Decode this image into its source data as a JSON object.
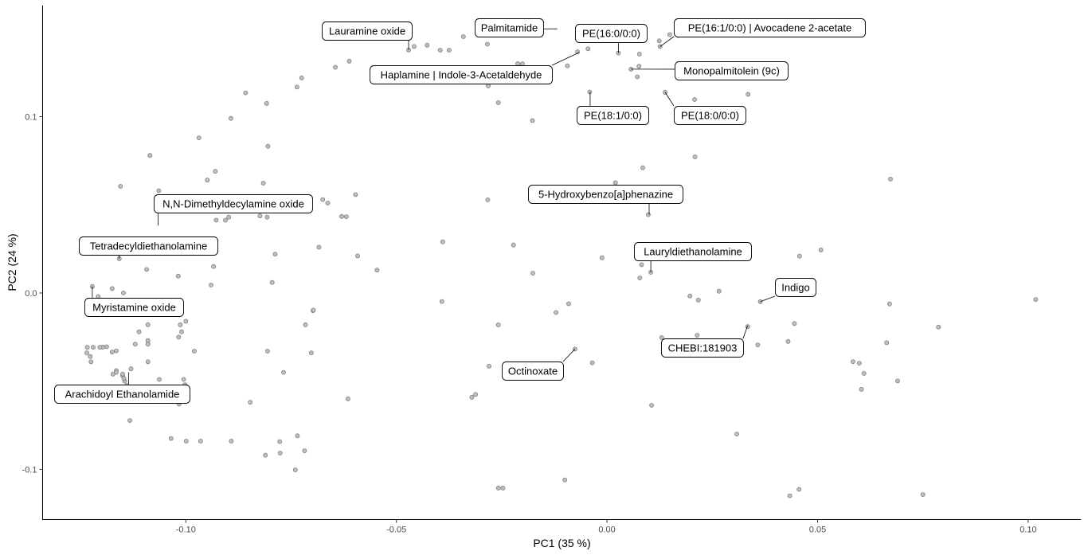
{
  "chart_data": {
    "type": "scatter",
    "xlabel": "PC1 (35 %)",
    "ylabel": "PC2 (24 %)",
    "xlim": [
      -0.134,
      0.1125
    ],
    "ylim": [
      -0.1285,
      0.163
    ],
    "xticks": [
      -0.1,
      -0.05,
      0.0,
      0.05,
      0.1
    ],
    "xtick_labels": [
      "-0.10",
      "-0.05",
      "0.00",
      "0.05",
      "0.10"
    ],
    "yticks": [
      -0.1,
      0.0,
      0.1
    ],
    "ytick_labels": [
      "-0.1",
      "0.0",
      "0.1"
    ],
    "grid": false,
    "legend": "none",
    "colors": {
      "point_fill": "#bdbdbd",
      "point_stroke": "#6e6e6e",
      "axis": "#000000",
      "tick_text": "#4d4d4d"
    },
    "points": [
      [
        -0.0471,
        0.1378
      ],
      [
        -0.0458,
        0.1398
      ],
      [
        -0.0427,
        0.1405
      ],
      [
        -0.0396,
        0.1377
      ],
      [
        -0.0375,
        0.1377
      ],
      [
        -0.0341,
        0.1454
      ],
      [
        -0.0284,
        0.1411
      ],
      [
        -0.0282,
        0.1175
      ],
      [
        -0.0227,
        0.1232
      ],
      [
        -0.0212,
        0.1301
      ],
      [
        -0.0201,
        0.13
      ],
      [
        -0.0178,
        0.1475
      ],
      [
        -0.0094,
        0.1288
      ],
      [
        -0.007,
        0.1368
      ],
      [
        -0.0045,
        0.1385
      ],
      [
        -0.0035,
        0.147
      ],
      [
        -0.0012,
        0.1492
      ],
      [
        0.0027,
        0.1361
      ],
      [
        0.0072,
        0.1226
      ],
      [
        0.0077,
        0.1355
      ],
      [
        0.0124,
        0.143
      ],
      [
        0.0126,
        0.1398
      ],
      [
        0.0149,
        0.1465
      ],
      [
        0.0169,
        0.146
      ],
      [
        0.0208,
        0.1097
      ],
      [
        0.0335,
        0.1127
      ],
      [
        -0.0258,
        0.1079
      ],
      [
        -0.0177,
        0.0978
      ],
      [
        0.0076,
        0.1286
      ],
      [
        0.0057,
        0.1269
      ],
      [
        -0.0041,
        0.114
      ],
      [
        0.0138,
        0.1138
      ],
      [
        0.0085,
        0.071
      ],
      [
        0.0209,
        0.0772
      ],
      [
        0.002,
        0.0625
      ],
      [
        -0.0283,
        0.0528
      ],
      [
        0.0098,
        0.0444
      ],
      [
        0.0673,
        0.0646
      ],
      [
        -0.0222,
        0.0272
      ],
      [
        -0.0176,
        0.0112
      ],
      [
        -0.0012,
        0.02
      ],
      [
        0.0082,
        0.016
      ],
      [
        0.0104,
        0.0117
      ],
      [
        0.0078,
        0.0085
      ],
      [
        0.0457,
        0.0209
      ],
      [
        0.0508,
        0.0244
      ],
      [
        0.0364,
        -0.0049
      ],
      [
        0.0197,
        -0.0017
      ],
      [
        0.0217,
        -0.004
      ],
      [
        0.0266,
        0.001
      ],
      [
        0.1018,
        -0.0037
      ],
      [
        0.0671,
        -0.0062
      ],
      [
        0.0445,
        -0.0173
      ],
      [
        0.0787,
        -0.0193
      ],
      [
        0.0334,
        -0.0191
      ],
      [
        0.0214,
        -0.024
      ],
      [
        0.013,
        -0.0253
      ],
      [
        0.0358,
        -0.0294
      ],
      [
        0.043,
        -0.0275
      ],
      [
        0.0664,
        -0.0282
      ],
      [
        0.0584,
        -0.0389
      ],
      [
        0.0599,
        -0.0398
      ],
      [
        0.061,
        -0.0456
      ],
      [
        0.069,
        -0.0499
      ],
      [
        0.0604,
        -0.0546
      ],
      [
        0.0308,
        -0.08
      ],
      [
        0.0456,
        -0.1114
      ],
      [
        0.0434,
        -0.115
      ],
      [
        0.075,
        -0.1143
      ],
      [
        0.0106,
        -0.0637
      ],
      [
        -0.0091,
        -0.0061
      ],
      [
        -0.0121,
        -0.0111
      ],
      [
        -0.0258,
        -0.0181
      ],
      [
        -0.0076,
        -0.0318
      ],
      [
        -0.0035,
        -0.0396
      ],
      [
        -0.028,
        -0.0415
      ],
      [
        -0.0312,
        -0.0575
      ],
      [
        -0.0321,
        -0.0591
      ],
      [
        -0.0258,
        -0.1106
      ],
      [
        -0.0247,
        -0.1106
      ],
      [
        -0.01,
        -0.106
      ],
      [
        -0.039,
        0.029
      ],
      [
        -0.0546,
        0.013
      ],
      [
        -0.0592,
        0.021
      ],
      [
        -0.0392,
        -0.0048
      ],
      [
        -0.0615,
        -0.06
      ],
      [
        -0.0619,
        0.0433
      ],
      [
        -0.063,
        0.0434
      ],
      [
        -0.0663,
        0.051
      ],
      [
        -0.0675,
        0.053
      ],
      [
        -0.0684,
        0.026
      ],
      [
        -0.0698,
        -0.01
      ],
      [
        -0.0697,
        -0.0097
      ],
      [
        -0.0702,
        -0.034
      ],
      [
        -0.0716,
        -0.018
      ],
      [
        -0.0735,
        -0.081
      ],
      [
        -0.0718,
        -0.0895
      ],
      [
        -0.074,
        -0.1003
      ],
      [
        -0.0776,
        -0.0908
      ],
      [
        -0.0777,
        -0.0843
      ],
      [
        -0.0788,
        0.022
      ],
      [
        -0.0806,
        -0.033
      ],
      [
        -0.0811,
        -0.092
      ],
      [
        -0.0768,
        -0.045
      ],
      [
        -0.0795,
        0.006
      ],
      [
        -0.0807,
        0.043
      ],
      [
        -0.0816,
        0.0623
      ],
      [
        -0.0805,
        0.0832
      ],
      [
        -0.0824,
        0.0437
      ],
      [
        -0.082,
        0.053
      ],
      [
        -0.0847,
        -0.062
      ],
      [
        -0.0878,
        0.052
      ],
      [
        -0.0892,
        -0.084
      ],
      [
        -0.0898,
        0.043
      ],
      [
        -0.0906,
        0.0413
      ],
      [
        -0.0928,
        0.0413
      ],
      [
        -0.094,
        0.0045
      ],
      [
        -0.0934,
        0.015
      ],
      [
        -0.093,
        0.069
      ],
      [
        -0.0949,
        0.064
      ],
      [
        -0.0965,
        -0.084
      ],
      [
        -0.0999,
        -0.084
      ],
      [
        -0.1002,
        -0.052
      ],
      [
        -0.1016,
        -0.063
      ],
      [
        -0.1035,
        -0.0825
      ],
      [
        -0.1017,
        -0.025
      ],
      [
        -0.1013,
        -0.018
      ],
      [
        -0.101,
        -0.022
      ],
      [
        -0.1,
        -0.016
      ],
      [
        -0.1018,
        0.0096
      ],
      [
        -0.1037,
        -0.008
      ],
      [
        -0.1064,
        0.058
      ],
      [
        -0.1085,
        0.078
      ],
      [
        -0.0969,
        0.088
      ],
      [
        -0.0893,
        0.099
      ],
      [
        -0.0858,
        0.1135
      ],
      [
        -0.0808,
        0.1075
      ],
      [
        -0.0736,
        0.1168
      ],
      [
        -0.0725,
        0.122
      ],
      [
        -0.0645,
        0.128
      ],
      [
        -0.0612,
        0.1315
      ],
      [
        -0.0597,
        0.0558
      ],
      [
        -0.1155,
        0.0605
      ],
      [
        -0.1158,
        0.0195
      ],
      [
        -0.1093,
        0.0133
      ],
      [
        -0.1175,
        0.0025
      ],
      [
        -0.1148,
        0.0
      ],
      [
        -0.1222,
        0.0037
      ],
      [
        -0.1208,
        -0.002
      ],
      [
        -0.1197,
        -0.0307
      ],
      [
        -0.1204,
        -0.0308
      ],
      [
        -0.122,
        -0.0308
      ],
      [
        -0.1234,
        -0.0308
      ],
      [
        -0.1227,
        -0.036
      ],
      [
        -0.1225,
        -0.039
      ],
      [
        -0.1235,
        -0.034
      ],
      [
        -0.1175,
        -0.0335
      ],
      [
        -0.1188,
        -0.0305
      ],
      [
        -0.1165,
        -0.0328
      ],
      [
        -0.1165,
        -0.044
      ],
      [
        -0.115,
        -0.047
      ],
      [
        -0.1173,
        -0.046
      ],
      [
        -0.1165,
        -0.045
      ],
      [
        -0.115,
        -0.046
      ],
      [
        -0.113,
        -0.043
      ],
      [
        -0.114,
        -0.0525
      ],
      [
        -0.1133,
        -0.0565
      ],
      [
        -0.1145,
        -0.05
      ],
      [
        -0.1147,
        -0.0485
      ],
      [
        -0.112,
        -0.029
      ],
      [
        -0.1111,
        -0.022
      ],
      [
        -0.109,
        -0.039
      ],
      [
        -0.1063,
        -0.049
      ],
      [
        -0.1078,
        -0.054
      ],
      [
        -0.1015,
        -0.054
      ],
      [
        -0.1,
        -0.053
      ],
      [
        -0.1005,
        -0.049
      ],
      [
        -0.1133,
        -0.0723
      ],
      [
        -0.106,
        -0.009
      ],
      [
        -0.109,
        -0.018
      ],
      [
        -0.109,
        -0.027
      ],
      [
        -0.109,
        -0.029
      ],
      [
        -0.098,
        -0.033
      ]
    ],
    "annotations": [
      {
        "text": "Lauramine oxide",
        "x": -0.0471,
        "y": 0.1378
      },
      {
        "text": "Palmitamide",
        "x": -0.0118,
        "y": 0.1498
      },
      {
        "text": "PE(16:0/0:0)",
        "x": 0.0027,
        "y": 0.1361
      },
      {
        "text": "PE(16:1/0:0) | Avocadene 2-acetate",
        "x": 0.0126,
        "y": 0.1398
      },
      {
        "text": "Haplamine | Indole-3-Acetaldehyde",
        "x": -0.0066,
        "y": 0.1364
      },
      {
        "text": "Monopalmitolein (9c)",
        "x": 0.0057,
        "y": 0.1269
      },
      {
        "text": "PE(18:1/0:0)",
        "x": -0.004,
        "y": 0.114
      },
      {
        "text": "PE(18:0/0:0)",
        "x": 0.0138,
        "y": 0.1138
      },
      {
        "text": "5-Hydroxybenzo[a]phenazine",
        "x": 0.01,
        "y": 0.0444
      },
      {
        "text": "N,N-Dimethyldecylamine oxide",
        "x": -0.1066,
        "y": 0.0383
      },
      {
        "text": "Tetradecyldiethanolamine",
        "x": -0.1158,
        "y": 0.0195
      },
      {
        "text": "Lauryldiethanolamine",
        "x": 0.0104,
        "y": 0.0117
      },
      {
        "text": "Indigo",
        "x": 0.0364,
        "y": -0.0049
      },
      {
        "text": "Myristamine oxide",
        "x": -0.1222,
        "y": 0.0037
      },
      {
        "text": "CHEBI:181903",
        "x": 0.0334,
        "y": -0.0184
      },
      {
        "text": "Octinoxate",
        "x": -0.0076,
        "y": -0.0318
      },
      {
        "text": "Arachidoyl Ethanolamide",
        "x": -0.1136,
        "y": -0.045
      }
    ]
  }
}
